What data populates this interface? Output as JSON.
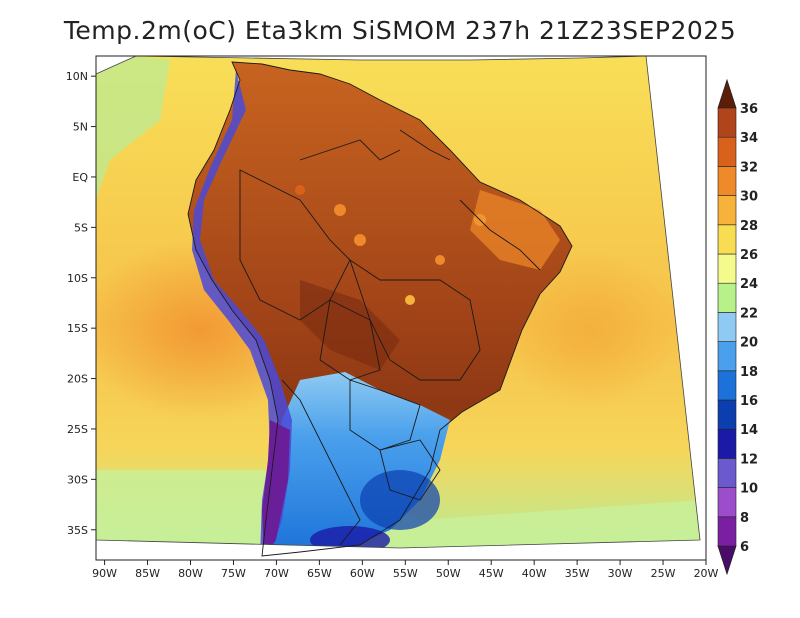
{
  "title": "Temp.2m(oC) Eta3km SiSMOM 237h 21Z23SEP2025",
  "map": {
    "lat_ticks": [
      {
        "value": 10,
        "label": "10N"
      },
      {
        "value": 5,
        "label": "5N"
      },
      {
        "value": 0,
        "label": "EQ"
      },
      {
        "value": -5,
        "label": "5S"
      },
      {
        "value": -10,
        "label": "10S"
      },
      {
        "value": -15,
        "label": "15S"
      },
      {
        "value": -20,
        "label": "20S"
      },
      {
        "value": -25,
        "label": "25S"
      },
      {
        "value": -30,
        "label": "30S"
      },
      {
        "value": -35,
        "label": "35S"
      }
    ],
    "lon_ticks": [
      {
        "value": -90,
        "label": "90W"
      },
      {
        "value": -85,
        "label": "85W"
      },
      {
        "value": -80,
        "label": "80W"
      },
      {
        "value": -75,
        "label": "75W"
      },
      {
        "value": -70,
        "label": "70W"
      },
      {
        "value": -65,
        "label": "65W"
      },
      {
        "value": -60,
        "label": "60W"
      },
      {
        "value": -55,
        "label": "55W"
      },
      {
        "value": -50,
        "label": "50W"
      },
      {
        "value": -45,
        "label": "45W"
      },
      {
        "value": -40,
        "label": "40W"
      },
      {
        "value": -35,
        "label": "35W"
      },
      {
        "value": -30,
        "label": "30W"
      },
      {
        "value": -25,
        "label": "25W"
      },
      {
        "value": -20,
        "label": "20W"
      }
    ],
    "lon_range": [
      -91,
      -20
    ],
    "lat_range": [
      -38,
      12
    ]
  },
  "colorbar": {
    "levels": [
      "6",
      "8",
      "10",
      "12",
      "14",
      "16",
      "18",
      "20",
      "22",
      "24",
      "26",
      "28",
      "30",
      "32",
      "34",
      "36"
    ],
    "colors": [
      "#4a0c6b",
      "#7b1fa2",
      "#9c4dcc",
      "#6a5acd",
      "#1a1aa6",
      "#0b3fb0",
      "#1c72d8",
      "#4aa0ec",
      "#8fcaf2",
      "#b8f08a",
      "#f4fa8c",
      "#f8dc52",
      "#f6b23a",
      "#ef8a2a",
      "#d8621c",
      "#b0441a",
      "#7a2c10"
    ],
    "min_arrow_color": "#4a0c6b",
    "max_arrow_color": "#5c1e08"
  }
}
